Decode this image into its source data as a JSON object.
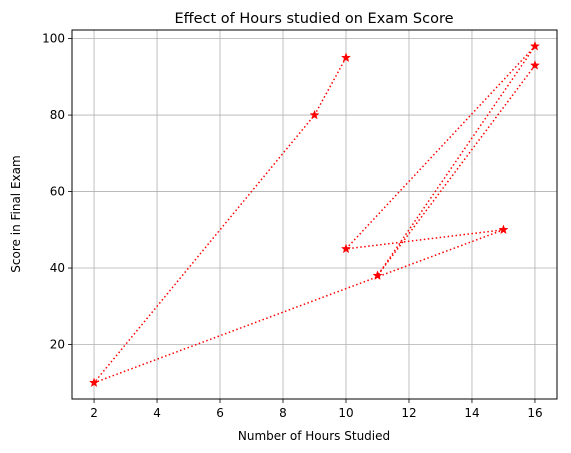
{
  "chart_data": {
    "type": "line",
    "title": "Effect of Hours studied on Exam Score",
    "xlabel": "Number of Hours Studied",
    "ylabel": "Score in Final Exam",
    "xlim": [
      1.3,
      16.7
    ],
    "ylim": [
      5.75,
      102.25
    ],
    "xticks": [
      2,
      4,
      6,
      8,
      10,
      12,
      14,
      16
    ],
    "yticks": [
      20,
      40,
      60,
      80,
      100
    ],
    "grid": true,
    "series": [
      {
        "x": [
          10,
          9,
          2,
          15,
          10,
          16,
          11,
          16
        ],
        "y": [
          95,
          80,
          10,
          50,
          45,
          98,
          38,
          93
        ],
        "color": "#ff0000",
        "linestyle": "dotted",
        "marker": "star"
      }
    ]
  }
}
